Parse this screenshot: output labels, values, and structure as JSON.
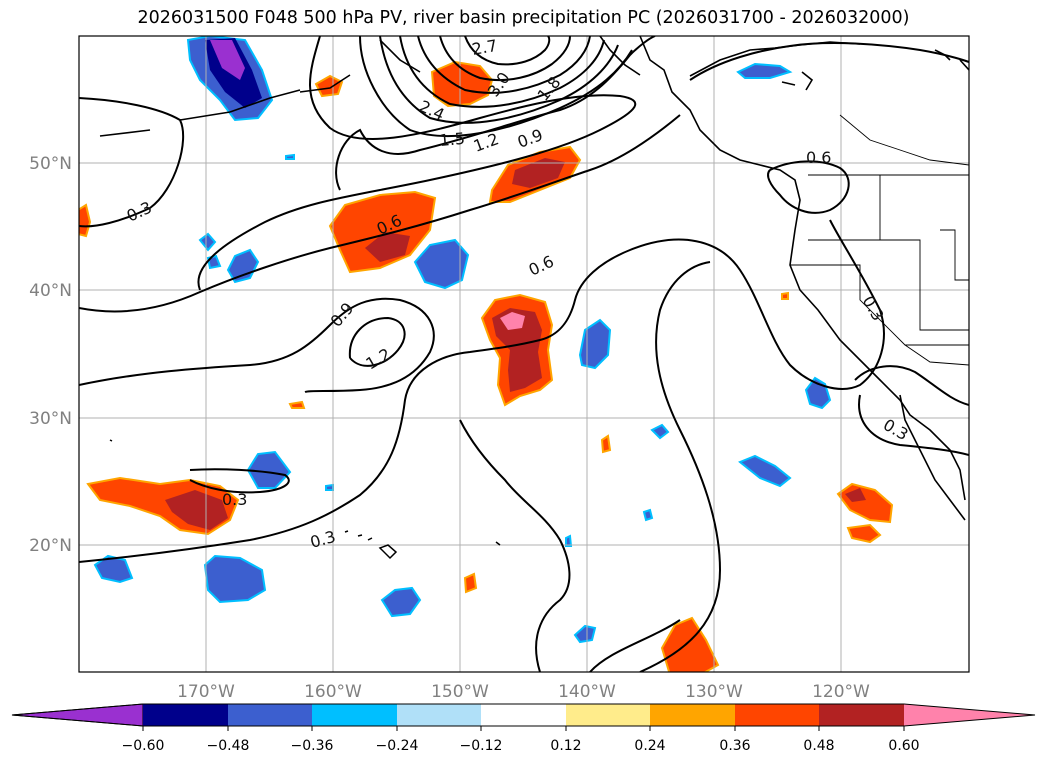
{
  "title": "2026031500 F048 500 hPa PV, river basin precipitation PC (2026031700 - 2026032000)",
  "map": {
    "lat_labels": [
      "50°N",
      "40°N",
      "30°N",
      "20°N"
    ],
    "lon_labels": [
      "170°W",
      "160°W",
      "150°W",
      "140°W",
      "130°W",
      "120°W"
    ],
    "gridlines": true
  },
  "contour_labels": [
    "2.7",
    "3.0",
    "2.4",
    "1.8",
    "1.5",
    "1.2",
    "0.9",
    "0.6",
    "0.3",
    "0.6",
    "0.6",
    "0.9",
    "1.2",
    "0.3",
    "0.3",
    "0.3",
    "0.3"
  ],
  "colorbar": {
    "ticks": [
      "−0.60",
      "−0.48",
      "−0.36",
      "−0.24",
      "−0.12",
      "0.12",
      "0.24",
      "0.36",
      "0.48",
      "0.60"
    ],
    "colors": [
      "#9a30d0",
      "#00008b",
      "#3c5fcf",
      "#00bfff",
      "#b0e0f8",
      "#ffffff",
      "#ffec8b",
      "#ffa500",
      "#ff4500",
      "#b22222",
      "#ff82ab"
    ]
  }
}
